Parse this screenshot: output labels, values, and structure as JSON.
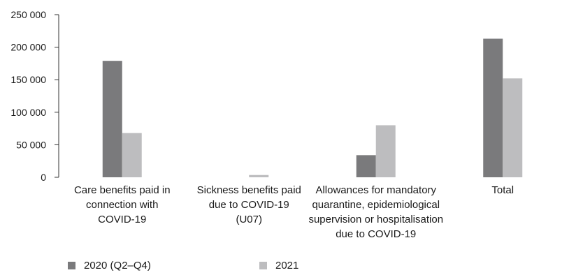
{
  "chart_data": {
    "type": "bar",
    "categories": [
      [
        "Care benefits paid in",
        "connection with",
        "COVID-19"
      ],
      [
        "Sickness benefits paid",
        "due to COVID-19",
        "(U07)"
      ],
      [
        "Allowances for mandatory",
        "quarantine, epidemiological",
        "supervision or hospitalisation",
        "due to COVID-19"
      ],
      [
        "Total"
      ]
    ],
    "series": [
      {
        "name": "2020 (Q2–Q4)",
        "color": "#7a7a7c",
        "values": [
          179000,
          0,
          34000,
          213000
        ]
      },
      {
        "name": "2021",
        "color": "#bdbdbf",
        "values": [
          68000,
          3500,
          80000,
          152000
        ]
      }
    ],
    "yticks": [
      "0",
      "50 000",
      "100 000",
      "150 000",
      "200 000",
      "250 000"
    ],
    "ylim": [
      0,
      250000
    ],
    "legend_position": "bottom-left",
    "grid": false
  }
}
